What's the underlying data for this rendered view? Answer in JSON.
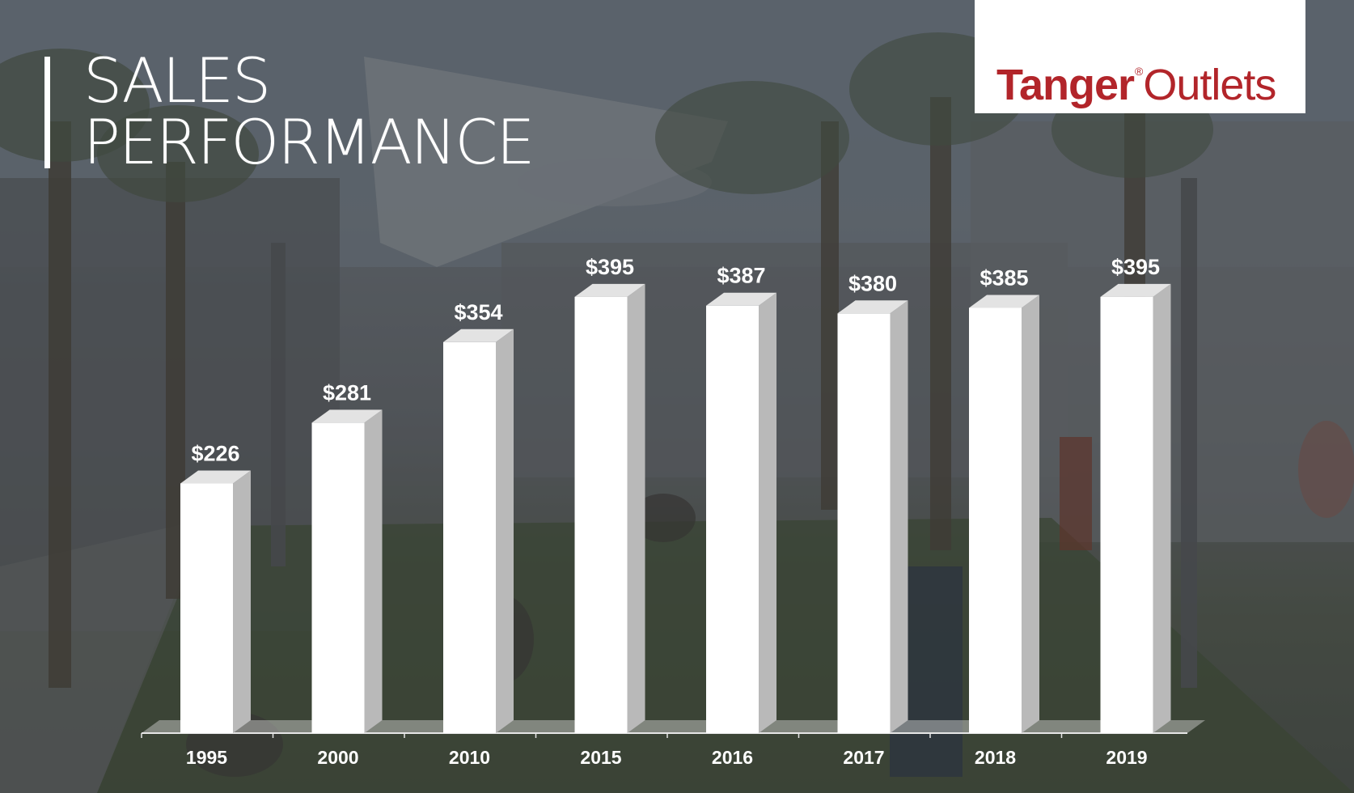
{
  "slide": {
    "title_line1": "SALES",
    "title_line2": "PERFORMANCE"
  },
  "logo": {
    "brand_bold": "Tanger",
    "registered": "®",
    "brand_light": "Outlets",
    "color": "#b2252a"
  },
  "colors": {
    "bar_front": "#ffffff",
    "bar_side": "#b9b9b9",
    "bar_top": "#e3e3e3",
    "label": "#ffffff"
  },
  "chart_data": {
    "type": "bar",
    "style": "3d",
    "categories": [
      "1995",
      "2000",
      "2010",
      "2015",
      "2016",
      "2017",
      "2018",
      "2019"
    ],
    "values": [
      226,
      281,
      354,
      395,
      387,
      380,
      385,
      395
    ],
    "data_labels": [
      "$226",
      "$281",
      "$354",
      "$395",
      "$387",
      "$380",
      "$385",
      "$395"
    ],
    "title": "",
    "xlabel": "",
    "ylabel": "",
    "ylim": [
      0,
      395
    ],
    "grid": false,
    "legend": "none"
  }
}
